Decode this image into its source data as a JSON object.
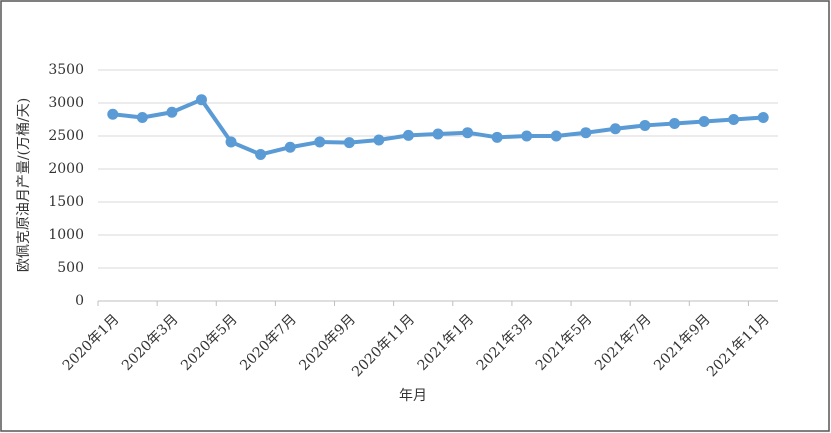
{
  "chart_data": {
    "type": "line",
    "y_label": "欧佩克原油月产量/(万桶/天)",
    "x_label": "年月",
    "categories": [
      "2020年1月",
      null,
      "2020年3月",
      null,
      "2020年5月",
      null,
      "2020年7月",
      null,
      "2020年9月",
      null,
      "2020年11月",
      null,
      "2021年1月",
      null,
      "2021年3月",
      null,
      "2021年5月",
      null,
      "2021年7月",
      null,
      "2021年9月",
      null,
      "2021年11月"
    ],
    "series": [
      {
        "color": "#5b9bd5",
        "values": [
          2830,
          2780,
          2860,
          3050,
          2410,
          2220,
          2330,
          2410,
          2400,
          2440,
          2510,
          2530,
          2550,
          2480,
          2500,
          2500,
          2550,
          2610,
          2660,
          2690,
          2720,
          2750,
          2780
        ]
      }
    ],
    "ylim": [
      0,
      3500
    ],
    "yticks": [
      0,
      500,
      1000,
      1500,
      2000,
      2500,
      3000,
      3500
    ],
    "grid": true
  }
}
